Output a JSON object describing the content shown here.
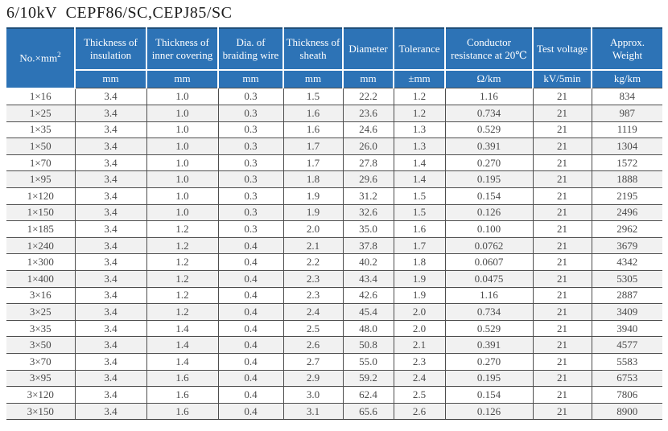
{
  "title": "6/10kV  CEPF86/SC,CEPJ85/SC",
  "colors": {
    "header_bg": "#2d73b6",
    "header_text": "#ffffff",
    "row_stripe": "#f1f1f1",
    "grid_line": "#4e4e4e",
    "body_text": "#4a4a4a"
  },
  "chart_data": {
    "type": "table",
    "title": "6/10kV  CEPF86/SC,CEPJ85/SC",
    "columns": [
      {
        "label_prefix": "No.×mm",
        "label_sup": "2",
        "unit": ""
      },
      {
        "label": "Thickness of insulation",
        "unit": "mm"
      },
      {
        "label": "Thickness of inner covering",
        "unit": "mm"
      },
      {
        "label": "Dia. of braiding wire",
        "unit": "mm"
      },
      {
        "label": "Thickness of sheath",
        "unit": "mm"
      },
      {
        "label": "Diameter",
        "unit": "mm"
      },
      {
        "label": "Tolerance",
        "unit": "±mm"
      },
      {
        "label": "Conductor resistance at 20℃",
        "unit": "Ω/km"
      },
      {
        "label": "Test voltage",
        "unit": "kV/5min"
      },
      {
        "label": "Approx. Weight",
        "unit": "kg/km"
      }
    ],
    "rows": [
      [
        "1×16",
        "3.4",
        "1.0",
        "0.3",
        "1.5",
        "22.2",
        "1.2",
        "1.16",
        "21",
        "834"
      ],
      [
        "1×25",
        "3.4",
        "1.0",
        "0.3",
        "1.6",
        "23.6",
        "1.2",
        "0.734",
        "21",
        "987"
      ],
      [
        "1×35",
        "3.4",
        "1.0",
        "0.3",
        "1.6",
        "24.6",
        "1.3",
        "0.529",
        "21",
        "1119"
      ],
      [
        "1×50",
        "3.4",
        "1.0",
        "0.3",
        "1.7",
        "26.0",
        "1.3",
        "0.391",
        "21",
        "1304"
      ],
      [
        "1×70",
        "3.4",
        "1.0",
        "0.3",
        "1.7",
        "27.8",
        "1.4",
        "0.270",
        "21",
        "1572"
      ],
      [
        "1×95",
        "3.4",
        "1.0",
        "0.3",
        "1.8",
        "29.6",
        "1.4",
        "0.195",
        "21",
        "1888"
      ],
      [
        "1×120",
        "3.4",
        "1.0",
        "0.3",
        "1.9",
        "31.2",
        "1.5",
        "0.154",
        "21",
        "2195"
      ],
      [
        "1×150",
        "3.4",
        "1.0",
        "0.3",
        "1.9",
        "32.6",
        "1.5",
        "0.126",
        "21",
        "2496"
      ],
      [
        "1×185",
        "3.4",
        "1.2",
        "0.3",
        "2.0",
        "35.0",
        "1.6",
        "0.100",
        "21",
        "2962"
      ],
      [
        "1×240",
        "3.4",
        "1.2",
        "0.4",
        "2.1",
        "37.8",
        "1.7",
        "0.0762",
        "21",
        "3679"
      ],
      [
        "1×300",
        "3.4",
        "1.2",
        "0.4",
        "2.2",
        "40.2",
        "1.8",
        "0.0607",
        "21",
        "4342"
      ],
      [
        "1×400",
        "3.4",
        "1.2",
        "0.4",
        "2.3",
        "43.4",
        "1.9",
        "0.0475",
        "21",
        "5305"
      ],
      [
        "3×16",
        "3.4",
        "1.2",
        "0.4",
        "2.3",
        "42.6",
        "1.9",
        "1.16",
        "21",
        "2887"
      ],
      [
        "3×25",
        "3.4",
        "1.2",
        "0.4",
        "2.4",
        "45.4",
        "2.0",
        "0.734",
        "21",
        "3409"
      ],
      [
        "3×35",
        "3.4",
        "1.4",
        "0.4",
        "2.5",
        "48.0",
        "2.0",
        "0.529",
        "21",
        "3940"
      ],
      [
        "3×50",
        "3.4",
        "1.4",
        "0.4",
        "2.6",
        "50.8",
        "2.1",
        "0.391",
        "21",
        "4577"
      ],
      [
        "3×70",
        "3.4",
        "1.4",
        "0.4",
        "2.7",
        "55.0",
        "2.3",
        "0.270",
        "21",
        "5583"
      ],
      [
        "3×95",
        "3.4",
        "1.6",
        "0.4",
        "2.9",
        "59.2",
        "2.4",
        "0.195",
        "21",
        "6753"
      ],
      [
        "3×120",
        "3.4",
        "1.6",
        "0.4",
        "3.0",
        "62.4",
        "2.5",
        "0.154",
        "21",
        "7806"
      ],
      [
        "3×150",
        "3.4",
        "1.6",
        "0.4",
        "3.1",
        "65.6",
        "2.6",
        "0.126",
        "21",
        "8900"
      ]
    ]
  }
}
